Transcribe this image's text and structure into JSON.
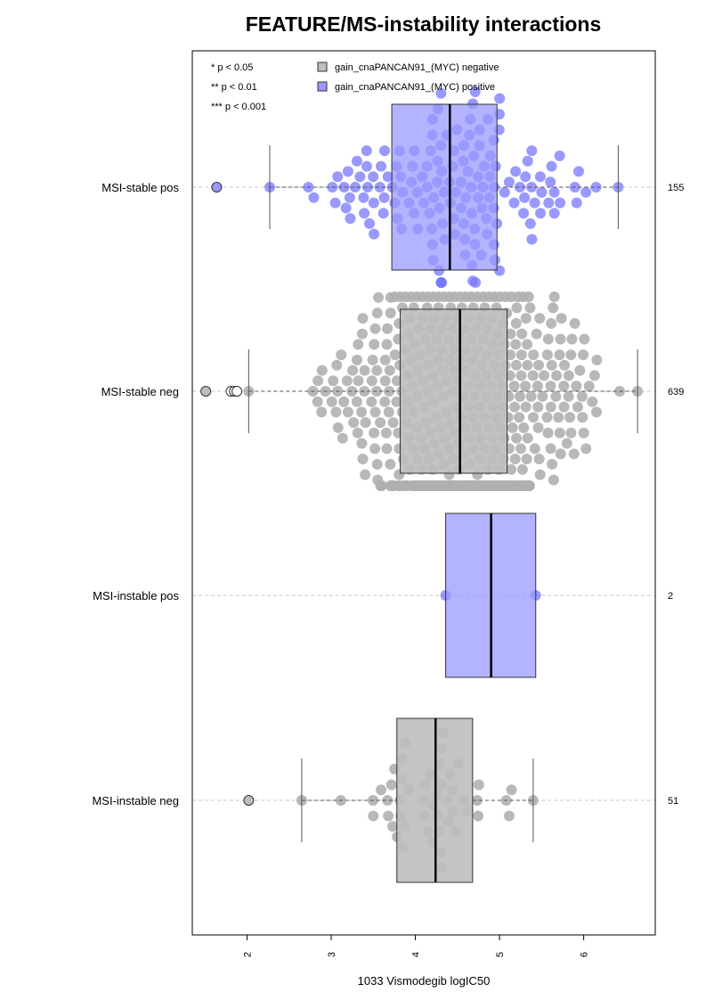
{
  "chart_data": {
    "type": "box-beeswarm",
    "title": "FEATURE/MS-instability interactions",
    "xlabel": "1033 Vismodegib logIC50",
    "xlim": [
      1.35,
      6.85
    ],
    "xticks": [
      "2",
      "3",
      "4",
      "5",
      "6"
    ],
    "significance_legend": [
      "* p < 0.05",
      "** p < 0.01",
      "*** p < 0.001"
    ],
    "legend": [
      {
        "label": "gain_cnaPANCAN91_(MYC) negative",
        "color": "#bebebe"
      },
      {
        "label": "gain_cnaPANCAN91_(MYC) positive",
        "color": "#9999ff"
      }
    ],
    "colors": {
      "negative_box": "#bebebe",
      "positive_box": "#9999ff",
      "negative_point": "#b0b0b0",
      "positive_point": "#7777ff",
      "outlier_positive": "#9999ff",
      "outlier_negative": "#bebebe",
      "gridline": "#c8c8c8"
    },
    "groups": [
      {
        "label": "MSI-stable pos",
        "n": "155",
        "status": "positive",
        "whisker_low": 2.27,
        "q1": 3.72,
        "median": 4.41,
        "q3": 4.97,
        "whisker_high": 6.41,
        "outliers": [
          1.64
        ],
        "point_range": [
          2.27,
          6.41
        ],
        "point_count": 155
      },
      {
        "label": "MSI-stable neg",
        "n": "639",
        "status": "negative",
        "whisker_low": 2.02,
        "q1": 3.82,
        "median": 4.53,
        "q3": 5.09,
        "whisker_high": 6.64,
        "outliers": [
          1.51,
          1.81,
          1.85,
          1.88
        ],
        "point_range": [
          2.02,
          6.64
        ],
        "point_count": 639
      },
      {
        "label": "MSI-instable pos",
        "n": "2",
        "status": "positive",
        "whisker_low": 4.36,
        "q1": 4.36,
        "median": 4.9,
        "q3": 5.43,
        "whisker_high": 5.43,
        "outliers": [],
        "points": [
          4.36,
          5.43
        ],
        "point_count": 2
      },
      {
        "label": "MSI-instable neg",
        "n": "51",
        "status": "negative",
        "whisker_low": 2.65,
        "q1": 3.78,
        "median": 4.24,
        "q3": 4.68,
        "whisker_high": 5.4,
        "outliers": [
          2.02
        ],
        "point_range": [
          2.65,
          5.4
        ],
        "point_count": 51
      }
    ]
  }
}
